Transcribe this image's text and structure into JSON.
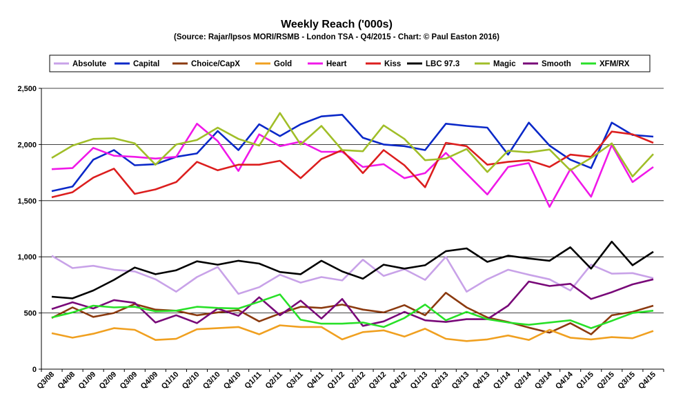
{
  "chart_data": {
    "type": "line",
    "title": "Weekly Reach ('000s)",
    "subtitle": "(Source: Rajar/Ipsos MORI/RSMB - London TSA - Q4/2015 - Chart: © Paul Easton 2016)",
    "xlabel": "",
    "ylabel": "",
    "ylim": [
      0,
      2500
    ],
    "yticks": [
      "0",
      "500",
      "1,000",
      "1,500",
      "2,000",
      "2,500"
    ],
    "ytick_values": [
      0,
      500,
      1000,
      1500,
      2000,
      2500
    ],
    "grid": "horizontal",
    "legend_position": "top",
    "categories": [
      "Q3/08",
      "Q4/08",
      "Q1/09",
      "Q2/09",
      "Q3/09",
      "Q4/09",
      "Q1/10",
      "Q2/10",
      "Q3/10",
      "Q4/10",
      "Q1/11",
      "Q2/11",
      "Q3/11",
      "Q4/11",
      "Q1/12",
      "Q2/12",
      "Q3/12",
      "Q4/12",
      "Q1/13",
      "Q2/13",
      "Q3/13",
      "Q4/13",
      "Q1/14",
      "Q2/14",
      "Q3/14",
      "Q4/14",
      "Q1/15",
      "Q2/15",
      "Q3/15",
      "Q4/15"
    ],
    "x_labels_shown": [
      "Q3/08",
      "Q4/08",
      "Q1/09",
      "Q2/09",
      "Q3/09",
      "Q4/09",
      "Q1/10",
      "Q2/10",
      "Q3/10",
      "Q4/10",
      "Q1/11",
      "Q2/11",
      "Q3/11",
      "Q4/11",
      "Q1/12",
      "Q2/12",
      "Q3/12",
      "Q4/12",
      "Q1/13",
      "Q2/13",
      "Q3/13",
      "Q4/13",
      "Q1/14",
      "Q2/14",
      "Q3/14",
      "Q4/14",
      "Q1/15",
      "Q2/15",
      "Q3/15",
      "Q4/15"
    ],
    "series": [
      {
        "name": "Absolute",
        "color": "#c8a2e8",
        "values": [
          1010,
          900,
          920,
          885,
          870,
          800,
          690,
          820,
          910,
          670,
          730,
          840,
          770,
          820,
          790,
          975,
          830,
          890,
          795,
          1000,
          690,
          800,
          885,
          840,
          800,
          700,
          930,
          850,
          855,
          810
        ]
      },
      {
        "name": "Capital",
        "color": "#0a28c8",
        "values": [
          1585,
          1625,
          1865,
          1950,
          1815,
          1825,
          1890,
          1920,
          2120,
          1950,
          2180,
          2075,
          2180,
          2250,
          2265,
          2060,
          2000,
          1985,
          1950,
          2185,
          2165,
          2150,
          1910,
          2195,
          1990,
          1865,
          1790,
          2195,
          2085,
          2070
        ]
      },
      {
        "name": "Choice/CapX",
        "color": "#8b3a0f",
        "values": [
          455,
          550,
          465,
          500,
          580,
          530,
          520,
          480,
          505,
          525,
          425,
          495,
          555,
          545,
          575,
          530,
          505,
          570,
          480,
          680,
          550,
          460,
          420,
          370,
          325,
          410,
          310,
          480,
          510,
          565
        ]
      },
      {
        "name": "Gold",
        "color": "#f0a020",
        "values": [
          320,
          280,
          315,
          365,
          350,
          260,
          270,
          355,
          365,
          375,
          310,
          390,
          375,
          375,
          265,
          330,
          345,
          290,
          360,
          270,
          250,
          265,
          300,
          260,
          350,
          280,
          265,
          285,
          275,
          340
        ]
      },
      {
        "name": "Heart",
        "color": "#f018e8",
        "values": [
          1780,
          1790,
          1970,
          1900,
          1890,
          1875,
          1890,
          2185,
          2030,
          1765,
          2090,
          1985,
          2025,
          1935,
          1935,
          1800,
          1825,
          1700,
          1745,
          1925,
          1740,
          1555,
          1800,
          1835,
          1445,
          1780,
          1535,
          1995,
          1665,
          1800
        ]
      },
      {
        "name": "Kiss",
        "color": "#dc1e1e",
        "values": [
          1530,
          1575,
          1705,
          1785,
          1560,
          1600,
          1665,
          1845,
          1770,
          1820,
          1820,
          1855,
          1700,
          1870,
          1950,
          1745,
          1950,
          1815,
          1620,
          2015,
          1985,
          1820,
          1845,
          1860,
          1800,
          1910,
          1890,
          2115,
          2090,
          2015
        ]
      },
      {
        "name": "LBC 97.3",
        "color": "#000000",
        "values": [
          645,
          630,
          700,
          795,
          905,
          845,
          880,
          960,
          930,
          965,
          940,
          865,
          845,
          965,
          870,
          805,
          930,
          895,
          925,
          1050,
          1075,
          955,
          1010,
          985,
          965,
          1085,
          895,
          1135,
          925,
          1045
        ]
      },
      {
        "name": "Magic",
        "color": "#a0be28",
        "values": [
          1880,
          1990,
          2050,
          2055,
          2010,
          1820,
          2000,
          2040,
          2150,
          2050,
          1990,
          2280,
          2000,
          2165,
          1950,
          1940,
          2170,
          2050,
          1860,
          1875,
          1960,
          1755,
          1945,
          1930,
          1955,
          1770,
          1880,
          2010,
          1715,
          1915
        ]
      },
      {
        "name": "Smooth",
        "color": "#780878",
        "values": [
          535,
          595,
          540,
          615,
          590,
          415,
          480,
          410,
          540,
          475,
          640,
          480,
          610,
          450,
          625,
          385,
          425,
          510,
          435,
          420,
          445,
          445,
          565,
          780,
          740,
          760,
          625,
          685,
          755,
          800
        ]
      },
      {
        "name": "XFM/RX",
        "color": "#28e028",
        "values": [
          460,
          505,
          565,
          550,
          555,
          515,
          520,
          555,
          545,
          540,
          600,
          665,
          440,
          405,
          405,
          415,
          375,
          455,
          575,
          435,
          510,
          445,
          415,
          395,
          415,
          435,
          365,
          430,
          500,
          520
        ]
      }
    ]
  }
}
